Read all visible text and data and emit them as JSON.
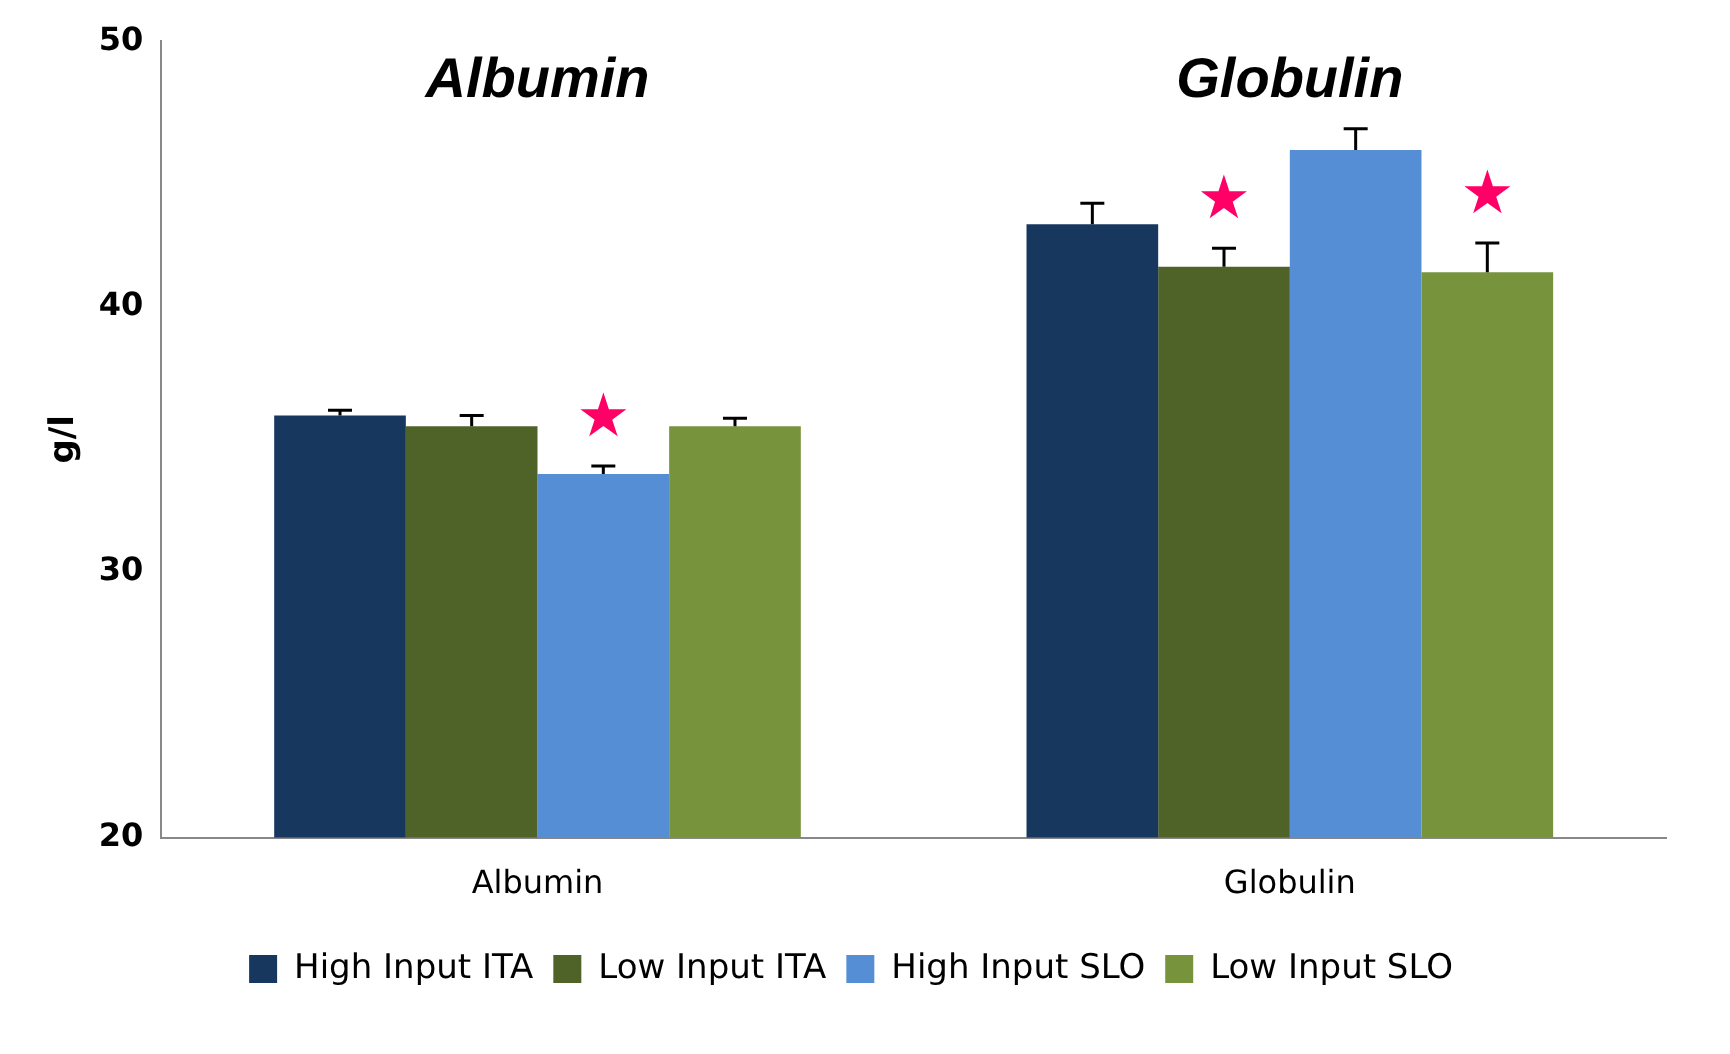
{
  "chart_data": {
    "type": "bar",
    "ylabel": "g/l",
    "categories": [
      "Albumin",
      "Globulin"
    ],
    "series": [
      {
        "name": "High Input ITA",
        "color": "#17375e",
        "values": [
          35.9,
          43.1
        ],
        "errors": [
          [
            35.9,
            36.1
          ],
          [
            43.1,
            43.9
          ]
        ]
      },
      {
        "name": "Low Input ITA",
        "color": "#4f6228",
        "values": [
          35.5,
          41.5
        ],
        "errors": [
          [
            35.5,
            35.9
          ],
          [
            41.5,
            42.2
          ]
        ],
        "value_labels": [
          null,
          "★"
        ]
      },
      {
        "name": "High Input SLO",
        "color": "#558ed5",
        "values": [
          33.7,
          45.9
        ],
        "errors": [
          [
            33.7,
            34.0
          ],
          [
            45.9,
            46.7
          ]
        ],
        "value_labels": [
          "★",
          null
        ]
      },
      {
        "name": "Low Input SLO",
        "color": "#77933c",
        "values": [
          35.5,
          41.3
        ],
        "errors": [
          [
            35.5,
            35.8
          ],
          [
            41.3,
            42.4
          ]
        ],
        "value_labels": [
          null,
          "★"
        ]
      }
    ],
    "ylim": [
      20,
      50
    ],
    "yticks": [
      20,
      30,
      40,
      50
    ],
    "grid": false,
    "legend": "bottom",
    "annotations": [
      "Albumin",
      "Globulin"
    ]
  }
}
